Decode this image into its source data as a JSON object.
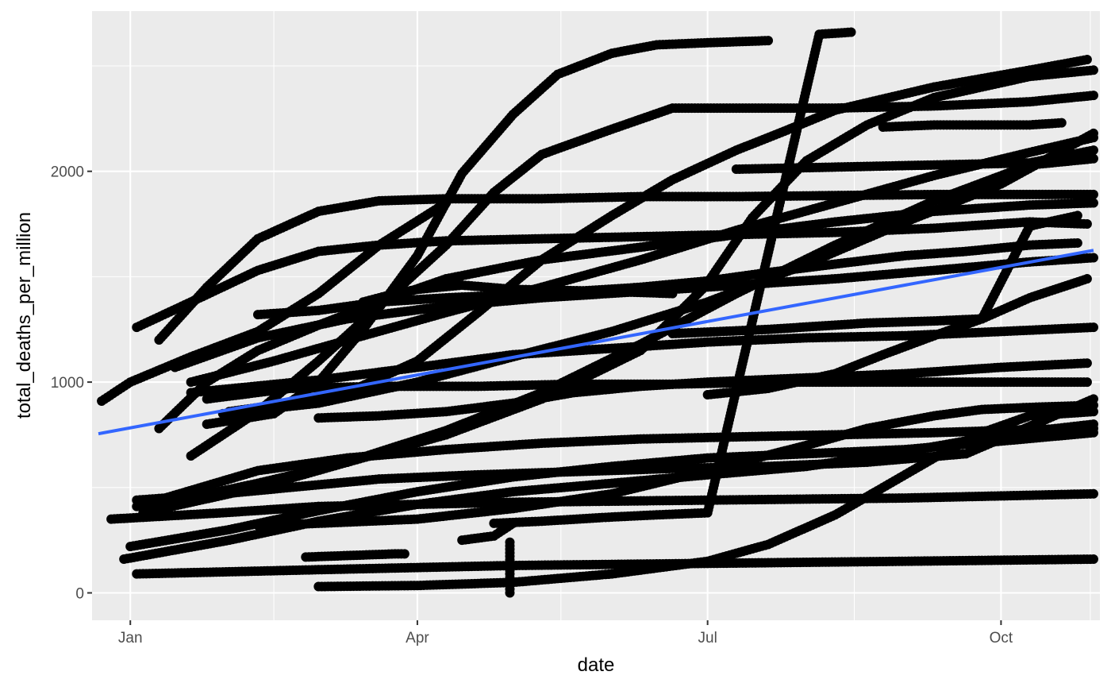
{
  "chart_data": {
    "type": "scatter",
    "title": "",
    "xlabel": "date",
    "ylabel": "total_deaths_per_million",
    "x_type": "date",
    "xlim": [
      "2020-12-20",
      "2021-11-01"
    ],
    "ylim": [
      -130,
      2760
    ],
    "x_ticks": [
      {
        "date": "2021-01-01",
        "label": "Jan"
      },
      {
        "date": "2021-04-01",
        "label": "Apr"
      },
      {
        "date": "2021-07-01",
        "label": "Jul"
      },
      {
        "date": "2021-10-01",
        "label": "Oct"
      }
    ],
    "x_minor_ticks": [
      "2021-02-15",
      "2021-05-16",
      "2021-08-16",
      "2021-10-29"
    ],
    "y_ticks": [
      0,
      1000,
      2000
    ],
    "y_minor_ticks": [
      500,
      1500,
      2500
    ],
    "grid": true,
    "legend": "none",
    "point_color": "#000000",
    "trend_line": {
      "method": "linear fit",
      "color": "#3366ff",
      "x": [
        "2020-12-22",
        "2021-10-30"
      ],
      "y": [
        755,
        1625
      ]
    },
    "series": [
      {
        "x": [
          "2020-12-23",
          "2021-01-01",
          "2021-01-20",
          "2021-02-10",
          "2021-03-01",
          "2021-03-20",
          "2021-04-10"
        ],
        "y": [
          910,
          1000,
          1120,
          1240,
          1420,
          1650,
          1850
        ]
      },
      {
        "x": [
          "2021-01-03",
          "2021-01-20",
          "2021-02-10",
          "2021-03-01",
          "2021-03-20",
          "2021-04-10",
          "2021-05-10",
          "2021-06-10",
          "2021-07-10",
          "2021-08-10",
          "2021-09-10",
          "2021-10-10",
          "2021-10-28"
        ],
        "y": [
          1260,
          1380,
          1530,
          1620,
          1650,
          1670,
          1680,
          1690,
          1700,
          1710,
          1730,
          1760,
          1750
        ]
      },
      {
        "x": [
          "2021-01-10",
          "2021-01-25",
          "2021-02-10",
          "2021-03-01",
          "2021-03-20",
          "2021-04-10",
          "2021-05-10",
          "2021-06-10",
          "2021-07-10",
          "2021-08-10",
          "2021-09-10",
          "2021-10-10",
          "2021-10-30"
        ],
        "y": [
          1200,
          1450,
          1680,
          1810,
          1860,
          1870,
          1870,
          1880,
          1880,
          1885,
          1890,
          1890,
          1890
        ]
      },
      {
        "x": [
          "2021-01-10",
          "2021-01-25",
          "2021-02-10",
          "2021-03-01",
          "2021-03-20",
          "2021-04-10",
          "2021-05-10",
          "2021-06-10",
          "2021-07-10",
          "2021-08-10",
          "2021-09-10",
          "2021-10-10",
          "2021-10-30"
        ],
        "y": [
          780,
          1000,
          1150,
          1270,
          1380,
          1490,
          1580,
          1640,
          1700,
          1760,
          1810,
          1840,
          1850
        ]
      },
      {
        "x": [
          "2021-01-15",
          "2021-02-10",
          "2021-03-10",
          "2021-04-10",
          "2021-05-10",
          "2021-06-10",
          "2021-07-10",
          "2021-08-10",
          "2021-09-10",
          "2021-10-10",
          "2021-10-30"
        ],
        "y": [
          1070,
          1210,
          1300,
          1360,
          1400,
          1430,
          1460,
          1490,
          1530,
          1570,
          1590
        ]
      },
      {
        "x": [
          "2021-01-20",
          "2021-02-10",
          "2021-03-01",
          "2021-03-20",
          "2021-04-10",
          "2021-04-25",
          "2021-05-10",
          "2021-06-01",
          "2021-06-20",
          "2021-07-10",
          "2021-08-10",
          "2021-09-10",
          "2021-10-10",
          "2021-10-30"
        ],
        "y": [
          650,
          860,
          1100,
          1360,
          1650,
          1900,
          2080,
          2200,
          2300,
          2300,
          2300,
          2310,
          2330,
          2360
        ]
      },
      {
        "x": [
          "2021-01-20",
          "2021-02-15",
          "2021-03-15",
          "2021-04-10",
          "2021-05-10",
          "2021-06-10",
          "2021-07-10",
          "2021-08-10",
          "2021-09-10",
          "2021-10-10",
          "2021-10-30"
        ],
        "y": [
          1000,
          1100,
          1220,
          1330,
          1450,
          1580,
          1720,
          1850,
          1980,
          2090,
          2160
        ]
      },
      {
        "x": [
          "2021-01-25",
          "2021-02-15",
          "2021-03-01",
          "2021-03-15",
          "2021-04-01",
          "2021-04-15",
          "2021-05-01",
          "2021-05-15",
          "2021-06-01",
          "2021-06-15",
          "2021-07-01",
          "2021-07-20"
        ],
        "y": [
          800,
          850,
          1000,
          1250,
          1600,
          1990,
          2270,
          2460,
          2560,
          2600,
          2610,
          2620
        ]
      },
      {
        "x": [
          "2021-02-01",
          "2021-02-20",
          "2021-03-10",
          "2021-04-01",
          "2021-04-20",
          "2021-05-10",
          "2021-06-01",
          "2021-06-20",
          "2021-07-10",
          "2021-07-25",
          "2021-08-10",
          "2021-09-10",
          "2021-10-10",
          "2021-10-28"
        ],
        "y": [
          860,
          900,
          950,
          1100,
          1330,
          1580,
          1790,
          1960,
          2100,
          2190,
          2290,
          2400,
          2480,
          2530
        ]
      },
      {
        "x": [
          "2021-01-10",
          "2021-02-10",
          "2021-03-10",
          "2021-04-10",
          "2021-05-10",
          "2021-06-10",
          "2021-06-30",
          "2021-07-15",
          "2021-08-01",
          "2021-08-20",
          "2021-09-10",
          "2021-10-10",
          "2021-10-30"
        ],
        "y": [
          420,
          520,
          620,
          750,
          920,
          1150,
          1450,
          1780,
          2050,
          2220,
          2350,
          2450,
          2480
        ]
      },
      {
        "x": [
          "2021-01-05",
          "2021-02-10",
          "2021-03-10",
          "2021-04-10",
          "2021-05-10",
          "2021-06-10",
          "2021-07-10",
          "2021-08-10",
          "2021-09-10",
          "2021-10-10",
          "2021-10-30"
        ],
        "y": [
          380,
          500,
          620,
          770,
          950,
          1180,
          1420,
          1650,
          1860,
          2030,
          2060
        ]
      },
      {
        "x": [
          "2021-01-30",
          "2021-03-01",
          "2021-04-01",
          "2021-05-01",
          "2021-06-01",
          "2021-07-01",
          "2021-08-01",
          "2021-09-01",
          "2021-10-01",
          "2021-10-30"
        ],
        "y": [
          850,
          900,
          1000,
          1120,
          1240,
          1380,
          1560,
          1760,
          1940,
          2180
        ]
      },
      {
        "x": [
          "2021-01-20",
          "2021-03-01",
          "2021-04-01",
          "2021-05-01",
          "2021-06-01",
          "2021-07-01",
          "2021-08-01",
          "2021-09-01",
          "2021-10-01",
          "2021-10-30"
        ],
        "y": [
          950,
          1010,
          1070,
          1130,
          1160,
          1190,
          1210,
          1220,
          1240,
          1260
        ]
      },
      {
        "x": [
          "2021-01-25",
          "2021-02-20",
          "2021-03-20",
          "2021-04-20",
          "2021-05-20",
          "2021-06-20",
          "2021-07-20",
          "2021-08-20",
          "2021-09-20",
          "2021-10-28"
        ],
        "y": [
          920,
          970,
          980,
          980,
          990,
          990,
          1000,
          1000,
          1000,
          1000
        ]
      },
      {
        "x": [
          "2021-03-01",
          "2021-03-20",
          "2021-04-10",
          "2021-05-01",
          "2021-05-20",
          "2021-06-10",
          "2021-07-01",
          "2021-08-01",
          "2021-09-01",
          "2021-10-01",
          "2021-10-28"
        ],
        "y": [
          830,
          840,
          860,
          900,
          950,
          980,
          1000,
          1020,
          1040,
          1070,
          1090
        ]
      },
      {
        "x": [
          "2021-01-03",
          "2021-02-10",
          "2021-03-10",
          "2021-04-10",
          "2021-05-10",
          "2021-06-10",
          "2021-07-10",
          "2021-08-10",
          "2021-09-10",
          "2021-10-10",
          "2021-10-30"
        ],
        "y": [
          410,
          580,
          640,
          680,
          710,
          730,
          740,
          750,
          760,
          775,
          780
        ]
      },
      {
        "x": [
          "2021-01-03",
          "2021-01-30",
          "2021-02-20",
          "2021-03-20",
          "2021-04-20",
          "2021-05-20",
          "2021-06-20",
          "2021-07-20",
          "2021-08-20",
          "2021-09-20",
          "2021-10-30"
        ],
        "y": [
          440,
          470,
          500,
          540,
          560,
          575,
          590,
          600,
          620,
          660,
          920
        ]
      },
      {
        "x": [
          "2020-12-26",
          "2021-01-30",
          "2021-03-01",
          "2021-04-01",
          "2021-05-01",
          "2021-06-01",
          "2021-07-01",
          "2021-08-01",
          "2021-09-01",
          "2021-10-01",
          "2021-10-30"
        ],
        "y": [
          350,
          380,
          410,
          420,
          430,
          435,
          440,
          445,
          450,
          460,
          470
        ]
      },
      {
        "x": [
          "2021-02-10",
          "2021-03-01",
          "2021-04-01",
          "2021-05-01",
          "2021-06-01",
          "2021-07-01",
          "2021-08-01",
          "2021-08-20",
          "2021-09-10",
          "2021-09-25",
          "2021-10-10",
          "2021-10-30"
        ],
        "y": [
          320,
          330,
          350,
          400,
          470,
          580,
          700,
          780,
          840,
          870,
          880,
          890
        ]
      },
      {
        "x": [
          "2021-01-01",
          "2021-02-01",
          "2021-03-01",
          "2021-04-01",
          "2021-05-01",
          "2021-06-01",
          "2021-07-01",
          "2021-08-01",
          "2021-09-01",
          "2021-10-01",
          "2021-10-30"
        ],
        "y": [
          220,
          300,
          390,
          480,
          550,
          600,
          640,
          660,
          680,
          720,
          760
        ]
      },
      {
        "x": [
          "2020-12-30",
          "2021-02-01",
          "2021-03-01",
          "2021-04-01",
          "2021-05-01",
          "2021-06-01",
          "2021-07-01",
          "2021-08-01",
          "2021-09-01",
          "2021-10-01",
          "2021-10-30"
        ],
        "y": [
          160,
          250,
          340,
          420,
          480,
          520,
          560,
          600,
          670,
          750,
          800
        ]
      },
      {
        "x": [
          "2021-01-03",
          "2021-03-01",
          "2021-05-01",
          "2021-07-01",
          "2021-09-01",
          "2021-10-30"
        ],
        "y": [
          90,
          110,
          130,
          140,
          150,
          160
        ]
      },
      {
        "x": [
          "2021-03-01",
          "2021-04-01",
          "2021-05-01",
          "2021-06-01",
          "2021-07-01",
          "2021-07-20",
          "2021-08-10",
          "2021-08-25",
          "2021-09-10",
          "2021-09-25",
          "2021-10-10",
          "2021-10-30"
        ],
        "y": [
          30,
          35,
          50,
          90,
          150,
          230,
          370,
          500,
          640,
          760,
          840,
          860
        ]
      },
      {
        "x": [
          "2021-04-30",
          "2021-04-30",
          "2021-04-30"
        ],
        "y": [
          0,
          90,
          240
        ]
      },
      {
        "x": [
          "2021-02-25",
          "2021-03-25",
          "2021-03-28"
        ],
        "y": [
          170,
          185,
          185
        ]
      },
      {
        "x": [
          "2021-04-15",
          "2021-04-25",
          "2021-05-01"
        ],
        "y": [
          250,
          270,
          330
        ]
      },
      {
        "x": [
          "2021-04-25",
          "2021-05-10",
          "2021-06-01",
          "2021-06-15",
          "2021-07-01",
          "2021-08-05",
          "2021-08-15"
        ],
        "y": [
          330,
          340,
          360,
          370,
          380,
          2650,
          2660
        ]
      },
      {
        "x": [
          "2021-03-15",
          "2021-03-25",
          "2021-04-01",
          "2021-04-15",
          "2021-05-01",
          "2021-06-01",
          "2021-06-20"
        ],
        "y": [
          1380,
          1420,
          1440,
          1460,
          1440,
          1430,
          1420
        ]
      },
      {
        "x": [
          "2021-02-10",
          "2021-03-01",
          "2021-03-20",
          "2021-04-10",
          "2021-05-10",
          "2021-06-10",
          "2021-07-01",
          "2021-07-20",
          "2021-08-10",
          "2021-09-01",
          "2021-09-20",
          "2021-10-10",
          "2021-10-25"
        ],
        "y": [
          1320,
          1340,
          1380,
          1400,
          1420,
          1450,
          1480,
          1520,
          1560,
          1600,
          1620,
          1650,
          1660
        ]
      },
      {
        "x": [
          "2021-07-01",
          "2021-07-20",
          "2021-08-10",
          "2021-08-25",
          "2021-09-10",
          "2021-09-25",
          "2021-10-10",
          "2021-10-28"
        ],
        "y": [
          940,
          970,
          1040,
          1130,
          1220,
          1300,
          1400,
          1490
        ]
      },
      {
        "x": [
          "2021-06-20",
          "2021-07-20",
          "2021-08-20",
          "2021-09-10",
          "2021-09-25",
          "2021-10-10",
          "2021-10-25"
        ],
        "y": [
          1230,
          1250,
          1280,
          1290,
          1300,
          1740,
          1790
        ]
      },
      {
        "x": [
          "2021-07-10",
          "2021-08-10",
          "2021-09-10",
          "2021-10-10",
          "2021-10-30"
        ],
        "y": [
          2010,
          2020,
          2030,
          2040,
          2100
        ]
      },
      {
        "x": [
          "2021-08-25",
          "2021-09-10",
          "2021-09-25",
          "2021-10-10",
          "2021-10-20"
        ],
        "y": [
          2210,
          2220,
          2220,
          2220,
          2230
        ]
      }
    ]
  }
}
